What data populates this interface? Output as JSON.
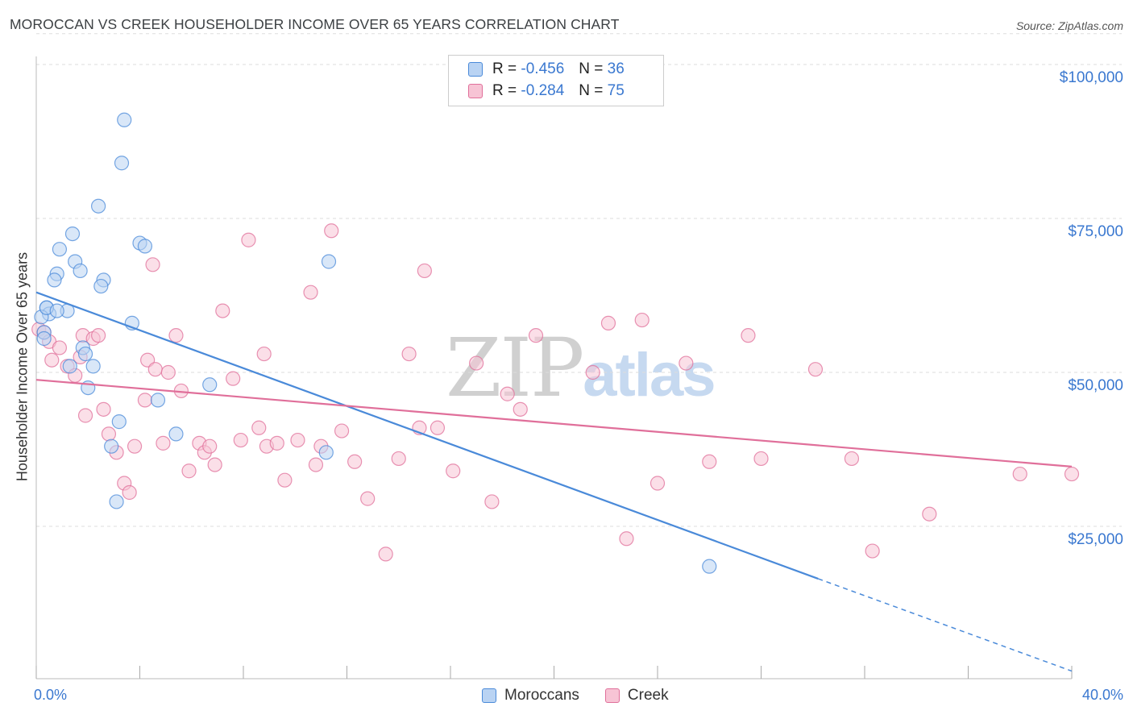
{
  "title": "MOROCCAN VS CREEK HOUSEHOLDER INCOME OVER 65 YEARS CORRELATION CHART",
  "source": "Source: ZipAtlas.com",
  "legend": {
    "moroccans": {
      "r_label": "R =",
      "r_value": "-0.456",
      "n_label": "N =",
      "n_value": "36"
    },
    "creek": {
      "r_label": "R =",
      "r_value": "-0.284",
      "n_label": "N =",
      "n_value": "75"
    }
  },
  "colors": {
    "moroccans": "#4a8ad9",
    "moroccans_fill": "#b9d3f3",
    "creek": "#e06f9a",
    "creek_fill": "#f7c4d5",
    "axis_text": "#3a78d0",
    "grid": "#dddddd"
  },
  "watermark": {
    "part1": "ZIP",
    "part2": "atlas"
  },
  "chart_data": {
    "type": "scatter",
    "title": "MOROCCAN VS CREEK HOUSEHOLDER INCOME OVER 65 YEARS CORRELATION CHART",
    "xlabel": "",
    "ylabel": "Householder Income Over 65 years",
    "xlim": [
      0,
      40
    ],
    "ylim": [
      1000,
      105000
    ],
    "x_tick_labels": [
      "0.0%",
      "40.0%"
    ],
    "y_ticks": [
      25000,
      50000,
      75000,
      100000
    ],
    "y_tick_labels": [
      "$25,000",
      "$50,000",
      "$75,000",
      "$100,000"
    ],
    "series": [
      {
        "name": "Moroccans",
        "x": [
          3.4,
          3.3,
          2.4,
          1.4,
          4.0,
          4.2,
          0.9,
          0.8,
          1.5,
          0.7,
          2.6,
          2.5,
          1.7,
          0.4,
          0.5,
          1.2,
          0.3,
          0.2,
          3.7,
          0.3,
          1.8,
          1.9,
          1.3,
          2.2,
          2.0,
          4.7,
          6.7,
          11.3,
          3.2,
          5.4,
          2.9,
          3.1,
          11.2,
          26.0,
          0.4,
          0.8
        ],
        "y": [
          91000,
          84000,
          77000,
          72500,
          71000,
          70500,
          70000,
          66000,
          68000,
          65000,
          65000,
          64000,
          66500,
          60500,
          59500,
          60000,
          56500,
          59000,
          58000,
          55500,
          54000,
          53000,
          51000,
          51000,
          47500,
          45500,
          48000,
          68000,
          42000,
          40000,
          38000,
          29000,
          37000,
          18500,
          60500,
          60000
        ]
      },
      {
        "name": "Creek",
        "x": [
          0.1,
          0.3,
          0.5,
          0.6,
          0.9,
          1.2,
          1.5,
          1.7,
          1.8,
          1.9,
          2.2,
          2.4,
          2.6,
          2.8,
          3.1,
          3.4,
          3.6,
          3.8,
          4.2,
          4.3,
          4.6,
          4.9,
          5.1,
          5.4,
          5.6,
          5.9,
          6.3,
          6.5,
          6.7,
          6.9,
          7.2,
          7.6,
          7.9,
          8.2,
          8.6,
          8.9,
          9.3,
          9.6,
          10.1,
          10.6,
          11.0,
          11.4,
          11.8,
          12.3,
          12.8,
          13.5,
          14.0,
          14.4,
          15.0,
          15.5,
          16.1,
          17.0,
          17.6,
          18.2,
          18.7,
          19.3,
          21.5,
          22.1,
          22.8,
          23.4,
          24.0,
          25.1,
          26.0,
          27.5,
          28.0,
          30.1,
          31.5,
          32.3,
          34.5,
          38.0,
          40.0,
          10.8,
          14.8,
          8.8,
          4.5
        ],
        "y": [
          57000,
          56500,
          55000,
          52000,
          54000,
          51000,
          49500,
          52500,
          56000,
          43000,
          55500,
          56000,
          44000,
          40000,
          37000,
          32000,
          30500,
          38000,
          45500,
          52000,
          50500,
          38500,
          50000,
          56000,
          47000,
          34000,
          38500,
          37000,
          38000,
          35000,
          60000,
          49000,
          39000,
          71500,
          41000,
          38000,
          38500,
          32500,
          39000,
          63000,
          38000,
          73000,
          40500,
          35500,
          29500,
          20500,
          36000,
          53000,
          66500,
          41000,
          34000,
          51500,
          29000,
          46500,
          44000,
          56000,
          50000,
          58000,
          23000,
          58500,
          32000,
          51500,
          35500,
          56000,
          36000,
          50500,
          36000,
          21000,
          27000,
          33500,
          33500,
          35000,
          41000,
          53000,
          67500
        ]
      }
    ],
    "trendlines": [
      {
        "series": "Moroccans",
        "x": [
          0,
          30.2
        ],
        "y": [
          63000,
          16500
        ],
        "dashed_extension": {
          "x": [
            30.2,
            40
          ],
          "y": [
            16500,
            1500
          ]
        }
      },
      {
        "series": "Creek",
        "x": [
          0,
          40
        ],
        "y": [
          48800,
          34700
        ]
      }
    ]
  }
}
